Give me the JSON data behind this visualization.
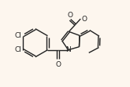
{
  "bg_color": "#fdf6ee",
  "bond_color": "#222222",
  "bond_width": 1.0,
  "font_size": 6.5,
  "font_color": "#222222",
  "xlim": [
    -0.5,
    9.5
  ],
  "ylim": [
    0.5,
    7.0
  ]
}
